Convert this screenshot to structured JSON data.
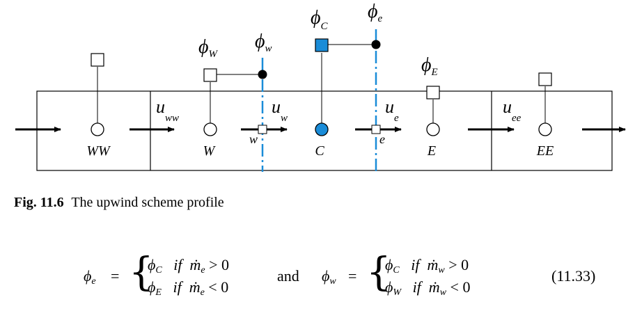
{
  "figure": {
    "cells": [
      {
        "node": "WW",
        "velocity": "u",
        "velocity_sub": "ww"
      },
      {
        "node": "W",
        "velocity": "u",
        "velocity_sub": "w"
      },
      {
        "node": "C",
        "velocity": "u",
        "velocity_sub": "e"
      },
      {
        "node": "E",
        "velocity": "u",
        "velocity_sub": "ee"
      },
      {
        "node": "EE"
      }
    ],
    "face_labels": {
      "west": "w",
      "east": "e"
    },
    "phi_labels": {
      "phi": "ϕ",
      "W_sub": "W",
      "w_sub": "w",
      "C_sub": "C",
      "e_sub": "e",
      "E_sub": "E"
    },
    "colors": {
      "accent": "#1a8cd8",
      "line": "#000000"
    }
  },
  "caption": {
    "label": "Fig. 11.6",
    "text": "The upwind scheme profile"
  },
  "equation": {
    "lhs_e": "ϕ",
    "lhs_e_sub": "e",
    "case_e_1_phi": "ϕ",
    "case_e_1_sub": "C",
    "case_e_1_if": "if",
    "case_e_1_m": "ṁ",
    "case_e_1_msub": "e",
    "case_e_1_cond": "> 0",
    "case_e_2_phi": "ϕ",
    "case_e_2_sub": "E",
    "case_e_2_if": "if",
    "case_e_2_m": "ṁ",
    "case_e_2_msub": "e",
    "case_e_2_cond": "< 0",
    "and": "and",
    "lhs_w": "ϕ",
    "lhs_w_sub": "w",
    "case_w_1_phi": "ϕ",
    "case_w_1_sub": "C",
    "case_w_1_if": "if",
    "case_w_1_m": "ṁ",
    "case_w_1_msub": "w",
    "case_w_1_cond": "> 0",
    "case_w_2_phi": "ϕ",
    "case_w_2_sub": "W",
    "case_w_2_if": "if",
    "case_w_2_m": "ṁ",
    "case_w_2_msub": "w",
    "case_w_2_cond": "< 0",
    "eq_sign": "=",
    "number": "(11.33)"
  }
}
